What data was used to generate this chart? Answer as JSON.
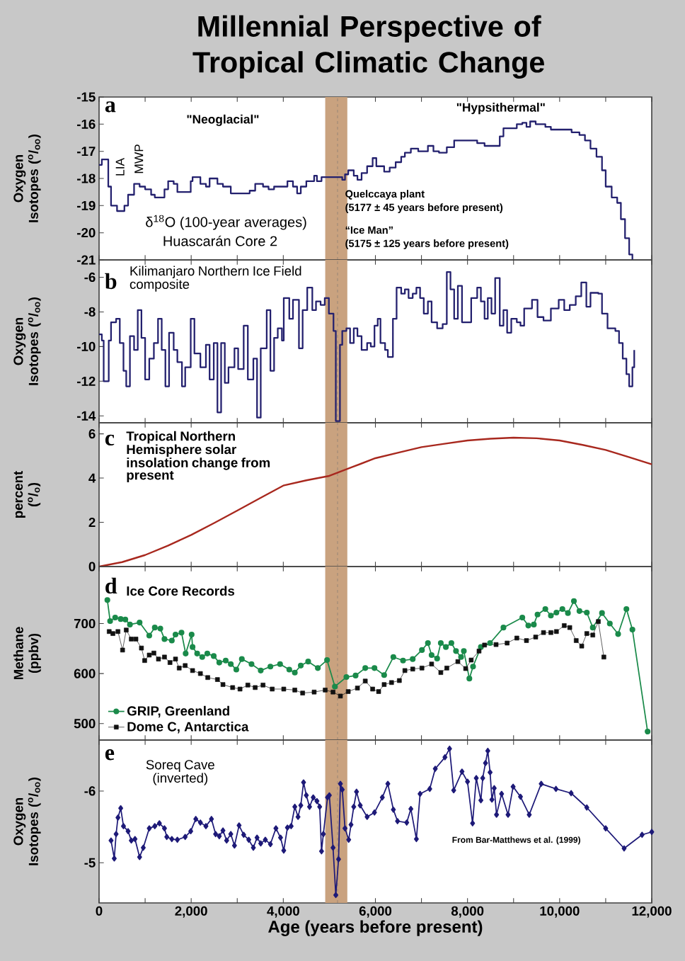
{
  "chart_data": [
    {
      "type": "step",
      "title": "Millennial Perspective of Tropical Climatic Change",
      "ylabel": "Oxygen Isotopes ($^{o}$/$_{oo}$)",
      "annotations": [
        "a",
        "LIA",
        "MWP",
        "\"Neoglacial\"",
        "\"Hypsithermal\"",
        "δ$^{18}$O (100-year averages)",
        "Huascarán Core 2",
        "Quelccaya plant",
        "(5177 ± 45 years before present)",
        "“Ice Man”",
        "(5175 ± 125 years before present)"
      ],
      "series": [
        {
          "color": "#23206e",
          "x": [
            0,
            60,
            200,
            260,
            390,
            550,
            630,
            760,
            880,
            1000,
            1130,
            1210,
            1420,
            1500,
            1620,
            1700,
            1990,
            2030,
            2200,
            2320,
            2400,
            2570,
            2690,
            2860,
            3270,
            3390,
            3560,
            3680,
            3800,
            4090,
            4210,
            4300,
            4380,
            4500,
            4670,
            4730,
            4830,
            5280,
            5340,
            5410,
            5530,
            5610,
            5700,
            5820,
            5940,
            6020,
            6190,
            6310,
            6440,
            6560,
            6640,
            6770,
            6930,
            7140,
            7260,
            7380,
            7550,
            7710,
            8210,
            8370,
            8700,
            8780,
            9070,
            9190,
            9280,
            9360,
            9480,
            9690,
            9810,
            10260,
            10430,
            10550,
            10670,
            10800,
            10920,
            11000,
            11130,
            11250,
            11330,
            11420,
            11510,
            11580
          ],
          "values": [
            -17.5,
            -17.3,
            -18.3,
            -19.0,
            -19.2,
            -19.0,
            -18.6,
            -18.2,
            -18.3,
            -18.4,
            -18.6,
            -18.7,
            -18.4,
            -18.1,
            -18.2,
            -18.5,
            -18.1,
            -17.95,
            -18.2,
            -18.3,
            -18.0,
            -18.2,
            -18.3,
            -18.55,
            -18.45,
            -18.2,
            -18.3,
            -18.4,
            -18.3,
            -18.1,
            -18.3,
            -18.55,
            -18.3,
            -18.1,
            -17.9,
            -18.1,
            -17.95,
            -18.05,
            -17.85,
            -17.7,
            -17.9,
            -18.05,
            -17.8,
            -17.55,
            -17.25,
            -17.55,
            -17.75,
            -17.6,
            -17.4,
            -17.2,
            -17.05,
            -16.9,
            -17.0,
            -16.8,
            -17.0,
            -17.05,
            -16.85,
            -16.6,
            -16.7,
            -16.8,
            -16.45,
            -16.15,
            -16.0,
            -15.95,
            -16.1,
            -15.9,
            -16.0,
            -16.1,
            -16.2,
            -16.3,
            -16.4,
            -16.6,
            -16.9,
            -17.2,
            -17.7,
            -18.3,
            -18.7,
            -18.9,
            -19.5,
            -20.2,
            -20.8,
            -21.0
          ]
        }
      ],
      "xlim": [
        0,
        12000
      ],
      "ylim": [
        -21,
        -15
      ],
      "yticks": [
        -15,
        -16,
        -17,
        -18,
        -19,
        -20,
        -21
      ],
      "xticks": [
        {
          "value": 0,
          "label": null
        },
        {
          "value": 1000,
          "label": null
        },
        {
          "value": 2000,
          "label": null
        },
        {
          "value": 3000,
          "label": null
        },
        {
          "value": 4000,
          "label": null
        },
        {
          "value": 5000,
          "label": null
        },
        {
          "value": 6000,
          "label": null
        },
        {
          "value": 7000,
          "label": null
        },
        {
          "value": 8000,
          "label": null
        },
        {
          "value": 9000,
          "label": null
        },
        {
          "value": 10000,
          "label": null
        },
        {
          "value": 11000,
          "label": null
        },
        {
          "value": 12000,
          "label": null
        }
      ],
      "tick_labels": "y",
      "bands": [
        {
          "axis": "x",
          "from": 4910,
          "to": 5390,
          "color": "#c9a27f"
        }
      ],
      "ref_lines": [
        {
          "axis": "x",
          "value": 5177,
          "color": "#6e6e6e",
          "line_style": "dashed"
        }
      ]
    },
    {
      "type": "step",
      "ylabel": "Oxygen Isotopes ($^{o}$/$_{oo}$)",
      "annotations": [
        "b",
        "Kilimanjaro Northern Ice Field composite"
      ],
      "series": [
        {
          "color": "#23206e",
          "x": [
            0,
            60,
            100,
            210,
            260,
            370,
            450,
            530,
            590,
            670,
            760,
            840,
            920,
            1000,
            1090,
            1190,
            1280,
            1360,
            1440,
            1520,
            1620,
            1700,
            1800,
            1870,
            1990,
            2070,
            2200,
            2320,
            2400,
            2490,
            2570,
            2650,
            2730,
            2810,
            2940,
            3020,
            3140,
            3230,
            3350,
            3430,
            3510,
            3640,
            3720,
            3800,
            3880,
            3970,
            4010,
            4130,
            4210,
            4340,
            4420,
            4520,
            4630,
            4710,
            4810,
            4900,
            4990,
            5090,
            5140,
            5230,
            5280,
            5370,
            5450,
            5530,
            5610,
            5700,
            5820,
            5900,
            5980,
            6050,
            6110,
            6210,
            6270,
            6380,
            6460,
            6560,
            6640,
            6720,
            6810,
            6890,
            6970,
            7050,
            7140,
            7220,
            7340,
            7460,
            7550,
            7630,
            7710,
            7790,
            7880,
            7960,
            8080,
            8210,
            8290,
            8370,
            8440,
            8520,
            8600,
            8700,
            8780,
            8860,
            8950,
            9070,
            9150,
            9230,
            9400,
            9520,
            9650,
            9810,
            9980,
            10100,
            10220,
            10350,
            10470,
            10580,
            10670,
            10840,
            10920,
            11040,
            11210,
            11290,
            11370,
            11450,
            11510,
            11580,
            11620
          ],
          "values": [
            -9.3,
            -9.65,
            -12.0,
            -9.65,
            -8.6,
            -8.4,
            -9.8,
            -11.4,
            -12.3,
            -9.4,
            -10.2,
            -7.9,
            -9.5,
            -11.9,
            -10.7,
            -9.8,
            -8.4,
            -10.2,
            -12.3,
            -9.2,
            -10.2,
            -10.9,
            -12.3,
            -11.2,
            -8.4,
            -10.4,
            -11.2,
            -9.9,
            -11.9,
            -9.8,
            -13.8,
            -9.8,
            -12.1,
            -11.2,
            -10.1,
            -11.3,
            -8.8,
            -11.9,
            -10.7,
            -14.1,
            -10.1,
            -7.9,
            -11.4,
            -9.5,
            -8.95,
            -9.65,
            -7.2,
            -8.4,
            -7.3,
            -10.1,
            -7.9,
            -6.6,
            -7.9,
            -7.4,
            -7.6,
            -7.2,
            -8.1,
            -9.1,
            -14.3,
            -9.9,
            -9.1,
            -8.95,
            -9.8,
            -8.95,
            -9.4,
            -10.2,
            -9.8,
            -10.0,
            -8.8,
            -8.4,
            -9.8,
            -10.2,
            -10.6,
            -8.4,
            -6.6,
            -6.95,
            -6.7,
            -7.2,
            -6.95,
            -6.6,
            -7.2,
            -8.1,
            -7.4,
            -8.6,
            -8.95,
            -8.7,
            -5.7,
            -6.7,
            -8.4,
            -6.5,
            -8.6,
            -8.6,
            -7.2,
            -6.6,
            -7.4,
            -8.4,
            -7.2,
            -8.1,
            -6.05,
            -8.8,
            -7.9,
            -9.2,
            -8.4,
            -8.6,
            -8.8,
            -7.8,
            -7.3,
            -8.3,
            -8.5,
            -7.8,
            -7.3,
            -7.9,
            -7.6,
            -7.1,
            -6.3,
            -7.7,
            -6.9,
            -6.95,
            -8.1,
            -8.95,
            -9.1,
            -9.8,
            -10.7,
            -11.6,
            -12.3,
            -11.2,
            -10.2
          ]
        }
      ],
      "xlim": [
        0,
        12000
      ],
      "ylim": [
        -14.4,
        -5
      ],
      "yticks": [
        -6,
        -8,
        -10,
        -12,
        -14
      ],
      "xticks": [
        {
          "value": 0,
          "label": null
        },
        {
          "value": 1000,
          "label": null
        },
        {
          "value": 2000,
          "label": null
        },
        {
          "value": 3000,
          "label": null
        },
        {
          "value": 4000,
          "label": null
        },
        {
          "value": 5000,
          "label": null
        },
        {
          "value": 6000,
          "label": null
        },
        {
          "value": 7000,
          "label": null
        },
        {
          "value": 8000,
          "label": null
        },
        {
          "value": 9000,
          "label": null
        },
        {
          "value": 10000,
          "label": null
        },
        {
          "value": 11000,
          "label": null
        },
        {
          "value": 12000,
          "label": null
        }
      ],
      "tick_labels": "y",
      "bands": [
        {
          "axis": "x",
          "from": 4910,
          "to": 5390,
          "color": "#c9a27f"
        }
      ],
      "ref_lines": [
        {
          "axis": "x",
          "value": 5177,
          "color": "#6e6e6e",
          "line_style": "dashed"
        }
      ]
    },
    {
      "type": "line",
      "ylabel": "percent ($^{o}$/$_{o}$)",
      "annotations": [
        "c",
        "Tropical Northern Hemisphere solar insolation change from present"
      ],
      "series": [
        {
          "color": "#a8281e",
          "x": [
            0,
            500,
            1000,
            1500,
            2000,
            2500,
            3000,
            3500,
            4000,
            4500,
            5000,
            5500,
            6000,
            6500,
            7000,
            7500,
            8000,
            8500,
            9000,
            9500,
            10000,
            10500,
            11000,
            11500,
            12000
          ],
          "values": [
            0,
            0.2,
            0.52,
            0.95,
            1.43,
            1.97,
            2.53,
            3.1,
            3.66,
            3.9,
            4.1,
            4.5,
            4.9,
            5.15,
            5.4,
            5.55,
            5.7,
            5.78,
            5.83,
            5.8,
            5.7,
            5.5,
            5.27,
            4.95,
            4.62
          ]
        }
      ],
      "xlim": [
        0,
        12000
      ],
      "ylim": [
        0,
        6.5
      ],
      "yticks": [
        0,
        2,
        4,
        6
      ],
      "xticks": [
        {
          "value": 0,
          "label": null
        },
        {
          "value": 1000,
          "label": null
        },
        {
          "value": 2000,
          "label": null
        },
        {
          "value": 3000,
          "label": null
        },
        {
          "value": 4000,
          "label": null
        },
        {
          "value": 5000,
          "label": null
        },
        {
          "value": 6000,
          "label": null
        },
        {
          "value": 7000,
          "label": null
        },
        {
          "value": 8000,
          "label": null
        },
        {
          "value": 9000,
          "label": null
        },
        {
          "value": 10000,
          "label": null
        },
        {
          "value": 11000,
          "label": null
        },
        {
          "value": 12000,
          "label": null
        }
      ],
      "tick_labels": "y",
      "bands": [
        {
          "axis": "x",
          "from": 4910,
          "to": 5390,
          "color": "#c9a27f"
        }
      ],
      "ref_lines": [
        {
          "axis": "x",
          "value": 5177,
          "color": "#6e6e6e",
          "line_style": "dashed"
        }
      ]
    },
    {
      "type": "line",
      "ylabel": "Methane (ppbv)",
      "legend": "bottom left",
      "annotations": [
        "d",
        "Ice Core Records"
      ],
      "series": [
        {
          "name": "GRIP, Greenland",
          "color": "#1a8a4a",
          "marker": "circle",
          "x": [
            180,
            240,
            350,
            470,
            570,
            670,
            880,
            1090,
            1210,
            1330,
            1420,
            1580,
            1660,
            1790,
            1880,
            2010,
            2030,
            2130,
            2240,
            2350,
            2490,
            2610,
            2750,
            2860,
            2980,
            3100,
            3310,
            3510,
            3720,
            3930,
            4130,
            4250,
            4380,
            4540,
            4750,
            4950,
            5120,
            5370,
            5570,
            5780,
            5980,
            6190,
            6390,
            6600,
            6810,
            7010,
            7140,
            7220,
            7340,
            7420,
            7530,
            7650,
            7750,
            7860,
            7920,
            8040,
            8120,
            8290,
            8490,
            8780,
            9190,
            9320,
            9440,
            9520,
            9690,
            9810,
            9930,
            10060,
            10180,
            10310,
            10430,
            10590,
            10720,
            10920,
            11090,
            11270,
            11450,
            11580,
            11910
          ],
          "values": [
            747,
            705,
            712,
            709,
            708,
            698,
            702,
            676,
            692,
            690,
            669,
            666,
            678,
            682,
            640,
            678,
            653,
            640,
            633,
            640,
            635,
            622,
            626,
            619,
            608,
            629,
            619,
            606,
            614,
            619,
            608,
            602,
            616,
            624,
            611,
            627,
            574,
            593,
            596,
            611,
            611,
            597,
            633,
            626,
            629,
            647,
            661,
            637,
            630,
            661,
            653,
            661,
            645,
            633,
            645,
            590,
            614,
            653,
            661,
            692,
            712,
            696,
            698,
            718,
            729,
            716,
            722,
            729,
            721,
            745,
            725,
            722,
            692,
            721,
            700,
            679,
            729,
            688,
            484
          ]
        },
        {
          "name": "Dome C, Antarctica",
          "color": "#111111",
          "marker": "square",
          "x": [
            220,
            300,
            410,
            510,
            590,
            700,
            800,
            920,
            990,
            1090,
            1190,
            1290,
            1420,
            1540,
            1660,
            1740,
            1870,
            2030,
            2200,
            2360,
            2570,
            2690,
            2900,
            3060,
            3230,
            3390,
            3560,
            3760,
            4010,
            4250,
            4420,
            4670,
            4910,
            5080,
            5240,
            5410,
            5610,
            5780,
            5940,
            6070,
            6190,
            6350,
            6520,
            6640,
            6810,
            7010,
            7220,
            7420,
            7550,
            7790,
            7960,
            8080,
            8250,
            8370,
            8620,
            8860,
            9070,
            9280,
            9480,
            9650,
            9810,
            9930,
            10100,
            10220,
            10360,
            10480,
            10590,
            10720,
            10840,
            10960
          ],
          "values": [
            684,
            680,
            684,
            647,
            687,
            669,
            669,
            651,
            626,
            637,
            641,
            629,
            633,
            622,
            629,
            611,
            616,
            606,
            600,
            592,
            588,
            578,
            572,
            569,
            577,
            572,
            577,
            569,
            569,
            567,
            561,
            563,
            567,
            563,
            555,
            564,
            571,
            585,
            569,
            564,
            578,
            582,
            586,
            606,
            609,
            611,
            619,
            602,
            611,
            624,
            610,
            627,
            645,
            657,
            658,
            661,
            671,
            666,
            673,
            682,
            682,
            684,
            696,
            692,
            666,
            655,
            680,
            677,
            704,
            633
          ]
        }
      ],
      "xlim": [
        0,
        12000
      ],
      "ylim": [
        467,
        814
      ],
      "yticks": [
        500,
        600,
        700
      ],
      "xticks": [
        {
          "value": 0,
          "label": null
        },
        {
          "value": 1000,
          "label": null
        },
        {
          "value": 2000,
          "label": null
        },
        {
          "value": 3000,
          "label": null
        },
        {
          "value": 4000,
          "label": null
        },
        {
          "value": 5000,
          "label": null
        },
        {
          "value": 6000,
          "label": null
        },
        {
          "value": 7000,
          "label": null
        },
        {
          "value": 8000,
          "label": null
        },
        {
          "value": 9000,
          "label": null
        },
        {
          "value": 10000,
          "label": null
        },
        {
          "value": 11000,
          "label": null
        },
        {
          "value": 12000,
          "label": null
        }
      ],
      "tick_labels": "y",
      "bands": [
        {
          "axis": "x",
          "from": 4910,
          "to": 5390,
          "color": "#c9a27f"
        }
      ],
      "ref_lines": [
        {
          "axis": "x",
          "value": 5177,
          "color": "#6e6e6e",
          "line_style": "dashed"
        }
      ]
    },
    {
      "type": "line",
      "xlabel": "Age (years before present)",
      "ylabel": "Oxygen Isotopes ($^{o}$/$_{oo}$)",
      "marker": "diamond",
      "annotations": [
        "e",
        "Soreq Cave (inverted)",
        "From Bar-Matthews et al. (1999)"
      ],
      "series": [
        {
          "color": "#1e1a78",
          "x": [
            260,
            330,
            370,
            410,
            470,
            530,
            630,
            700,
            780,
            880,
            960,
            1090,
            1210,
            1310,
            1420,
            1470,
            1580,
            1700,
            1870,
            1990,
            2100,
            2200,
            2320,
            2440,
            2530,
            2610,
            2690,
            2770,
            2860,
            2940,
            3040,
            3140,
            3250,
            3350,
            3430,
            3510,
            3610,
            3720,
            3840,
            3940,
            4010,
            4090,
            4170,
            4250,
            4320,
            4380,
            4440,
            4500,
            4570,
            4650,
            4730,
            4790,
            4830,
            4870,
            4960,
            5000,
            5080,
            5140,
            5200,
            5240,
            5280,
            5340,
            5420,
            5470,
            5530,
            5590,
            5670,
            5820,
            5980,
            6150,
            6270,
            6390,
            6480,
            6680,
            6770,
            6890,
            6970,
            7180,
            7300,
            7510,
            7610,
            7700,
            7880,
            8000,
            8110,
            8190,
            8290,
            8330,
            8390,
            8440,
            8490,
            8530,
            8580,
            8630,
            8740,
            8880,
            8990,
            9150,
            9340,
            9600,
            9920,
            10250,
            10590,
            11000,
            11400,
            11790,
            12000
          ],
          "values": [
            -5.31,
            -5.06,
            -5.4,
            -5.63,
            -5.76,
            -5.51,
            -5.44,
            -5.31,
            -5.33,
            -5.08,
            -5.21,
            -5.48,
            -5.51,
            -5.55,
            -5.48,
            -5.36,
            -5.33,
            -5.32,
            -5.36,
            -5.44,
            -5.61,
            -5.56,
            -5.51,
            -5.61,
            -5.4,
            -5.37,
            -5.45,
            -5.31,
            -5.4,
            -5.24,
            -5.52,
            -5.39,
            -5.32,
            -5.21,
            -5.35,
            -5.27,
            -5.32,
            -5.26,
            -5.48,
            -5.35,
            -5.17,
            -5.49,
            -5.51,
            -5.78,
            -5.64,
            -5.8,
            -6.12,
            -5.94,
            -5.78,
            -5.91,
            -5.86,
            -5.78,
            -5.16,
            -5.4,
            -5.91,
            -5.94,
            -5.21,
            -4.55,
            -5.05,
            -6.1,
            -6.02,
            -5.48,
            -5.32,
            -5.53,
            -5.78,
            -5.99,
            -5.8,
            -5.64,
            -5.7,
            -5.91,
            -6.1,
            -5.74,
            -5.58,
            -5.56,
            -5.75,
            -5.33,
            -5.96,
            -6.03,
            -6.31,
            -6.47,
            -6.59,
            -6.01,
            -6.27,
            -6.13,
            -5.55,
            -6.18,
            -5.87,
            -6.18,
            -6.39,
            -6.56,
            -6.26,
            -5.88,
            -6.04,
            -5.67,
            -5.96,
            -5.67,
            -6.06,
            -5.92,
            -5.67,
            -6.1,
            -6.03,
            -5.97,
            -5.77,
            -5.48,
            -5.2,
            -5.39,
            -5.43
          ]
        }
      ],
      "xlim": [
        0,
        12000
      ],
      "ylim": [
        -4.44,
        -6.71
      ],
      "yticks": [
        -6,
        -5
      ],
      "xticks": [
        {
          "value": 0,
          "label": "0"
        },
        {
          "value": 1000,
          "label": null
        },
        {
          "value": 2000,
          "label": "2,000"
        },
        {
          "value": 3000,
          "label": null
        },
        {
          "value": 4000,
          "label": "4,000"
        },
        {
          "value": 5000,
          "label": null
        },
        {
          "value": 6000,
          "label": "6,000"
        },
        {
          "value": 7000,
          "label": null
        },
        {
          "value": 8000,
          "label": "8,000"
        },
        {
          "value": 9000,
          "label": null
        },
        {
          "value": 10000,
          "label": "10,000"
        },
        {
          "value": 11000,
          "label": null
        },
        {
          "value": 12000,
          "label": "12,000"
        }
      ],
      "bands": [
        {
          "axis": "x",
          "from": 4910,
          "to": 5390,
          "color": "#c9a27f"
        }
      ],
      "ref_lines": [
        {
          "axis": "x",
          "value": 5177,
          "color": "#6e6e6e",
          "line_style": "dashed"
        }
      ]
    }
  ]
}
